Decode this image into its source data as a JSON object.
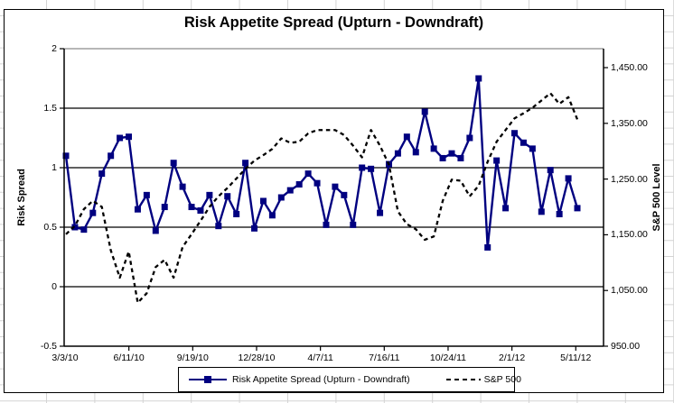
{
  "chart_data": {
    "type": "line",
    "title": "Risk Appetite Spread (Upturn - Downdraft)",
    "legend_position": "bottom",
    "grid": "horizontal",
    "x_tick_labels": [
      "3/3/10",
      "6/11/10",
      "9/19/10",
      "12/28/10",
      "4/7/11",
      "7/16/11",
      "10/24/11",
      "2/1/12",
      "5/11/12"
    ],
    "left_axis": {
      "label": "Risk Spread",
      "min": -0.5,
      "max": 2,
      "tick_values": [
        2,
        1.5,
        1,
        0.5,
        0,
        -0.5
      ],
      "tick_labels": [
        "2",
        "1.5",
        "1",
        "0.5",
        "0",
        "-0.5"
      ]
    },
    "right_axis": {
      "label": "S&P 500 Level",
      "min": 950,
      "max": 1484,
      "tick_values": [
        1450,
        1350,
        1250,
        1150,
        1050,
        950
      ],
      "tick_labels": [
        "1,450.00",
        "1,350.00",
        "1,250.00",
        "1,150.00",
        "1,050.00",
        "950.00"
      ]
    },
    "series": [
      {
        "name": "Risk Appetite Spread (Upturn - Downdraft)",
        "axis": "left",
        "color": "#000080",
        "line_style": "solid",
        "marker": "square",
        "values": [
          1.1,
          0.5,
          0.48,
          0.62,
          0.95,
          1.1,
          1.25,
          1.26,
          0.65,
          0.77,
          0.47,
          0.67,
          1.04,
          0.84,
          0.67,
          0.64,
          0.77,
          0.51,
          0.76,
          0.61,
          1.04,
          0.49,
          0.72,
          0.6,
          0.75,
          0.81,
          0.86,
          0.95,
          0.87,
          0.52,
          0.84,
          0.77,
          0.52,
          1.0,
          0.99,
          0.62,
          1.03,
          1.12,
          1.26,
          1.13,
          1.47,
          1.16,
          1.08,
          1.12,
          1.08,
          1.25,
          1.75,
          0.33,
          1.06,
          0.66,
          1.29,
          1.21,
          1.16,
          0.63,
          0.98,
          0.61,
          0.91,
          0.66
        ]
      },
      {
        "name": "S&P 500",
        "axis": "right",
        "color": "#000000",
        "line_style": "dashed",
        "marker": "none",
        "values": [
          1151,
          1166,
          1196,
          1211,
          1200,
          1122,
          1073,
          1120,
          1028,
          1045,
          1092,
          1105,
          1073,
          1128,
          1151,
          1175,
          1200,
          1219,
          1234,
          1251,
          1268,
          1283,
          1293,
          1304,
          1323,
          1315,
          1317,
          1332,
          1338,
          1338,
          1338,
          1329,
          1310,
          1289,
          1338,
          1310,
          1276,
          1192,
          1169,
          1160,
          1141,
          1147,
          1211,
          1249,
          1247,
          1219,
          1238,
          1281,
          1317,
          1338,
          1359,
          1368,
          1378,
          1391,
          1404,
          1385,
          1397,
          1357
        ]
      }
    ]
  },
  "worksheet": {
    "gridline_color": "#d4d4d4"
  }
}
